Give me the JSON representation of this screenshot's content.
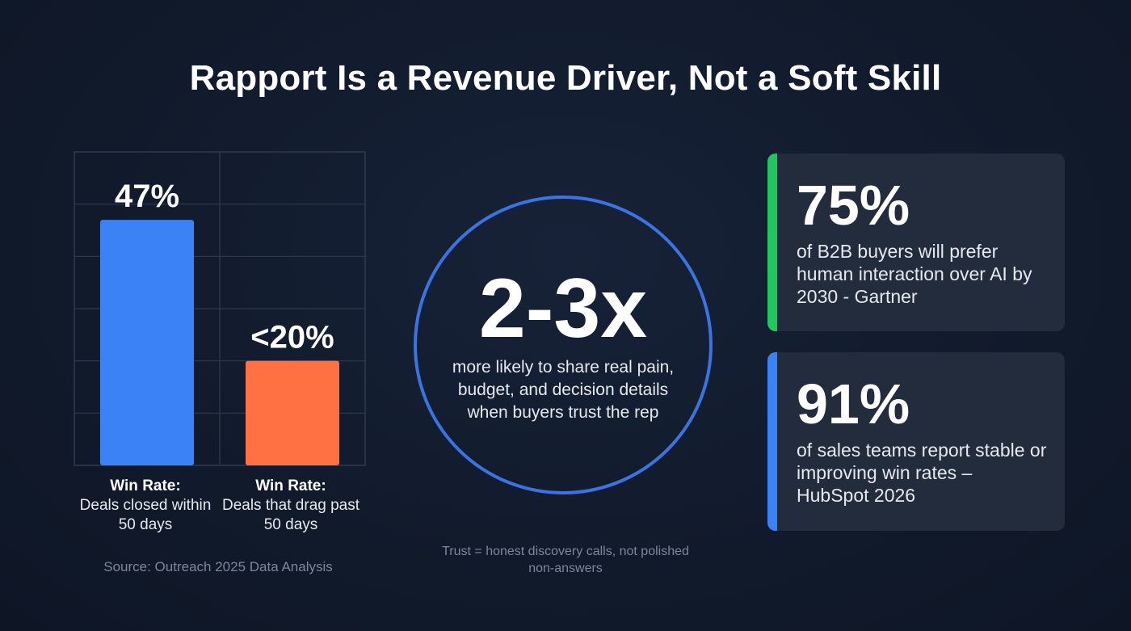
{
  "title": "Rapport Is a Revenue Driver, Not a Soft Skill",
  "colors": {
    "bar_primary": "#3b82f6",
    "bar_secondary": "#ff7043",
    "circle_stroke": "#3b74e0",
    "accent_green": "#22c55e",
    "accent_blue": "#3b82f6",
    "grid": "#2e3a4f"
  },
  "chart_data": {
    "type": "bar",
    "categories": [
      "Win Rate: Deals closed within 50 days",
      "Win Rate: Deals that drag past 50 days"
    ],
    "values": [
      47,
      20
    ],
    "data_labels": [
      "47%",
      "<20%"
    ],
    "category_titles": [
      "Win Rate:",
      "Win Rate:"
    ],
    "category_descriptions": [
      "Deals closed within 50 days",
      "Deals that drag past 50 days"
    ],
    "ylim": [
      0,
      60
    ],
    "grid": true,
    "title": "",
    "xlabel": "",
    "ylabel": "",
    "source": "Source: Outreach 2025 Data Analysis"
  },
  "center": {
    "multiplier": "2-3x",
    "description": "more likely to share real pain, budget, and decision details when buyers trust the rep",
    "footnote": "Trust = honest discovery calls, not polished non-answers"
  },
  "cards": [
    {
      "stat": "75%",
      "description": "of B2B buyers will prefer human interaction over AI by 2030 - Gartner",
      "accent": "#22c55e"
    },
    {
      "stat": "91%",
      "description": "of sales teams report stable or improving win rates – HubSpot 2026",
      "accent": "#3b82f6"
    }
  ]
}
